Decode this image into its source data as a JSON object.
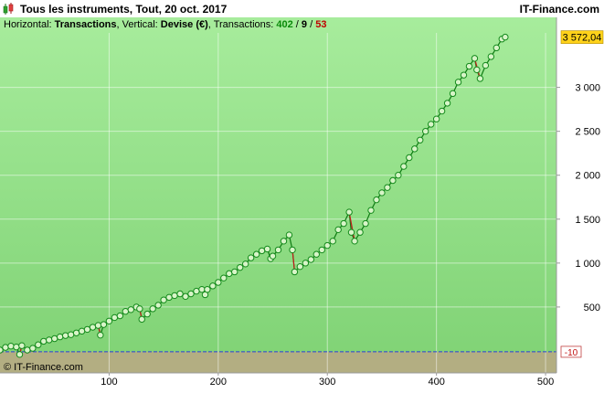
{
  "header": {
    "title": "Tous les instruments, Tout, 20 oct. 2017",
    "brand": "IT-Finance.com"
  },
  "subtitle": {
    "horizontal_label": "Horizontal: ",
    "horizontal_value": "Transactions",
    "vertical_label": ", Vertical: ",
    "vertical_value": "Devise (€)",
    "transactions_label": ", Transactions: ",
    "count_total": "402",
    "sep1": " / ",
    "count_neutral": "9",
    "sep2": " / ",
    "count_losing": "53"
  },
  "watermark": "© IT-Finance.com",
  "colors": {
    "bg_top": "#a7ec9c",
    "bg_bottom": "#7fd274",
    "line": "#0e7a12",
    "loss_line": "#c41a1a",
    "marker_fill": "#d8f5c8",
    "marker_stroke": "#148a1c",
    "zero_zone": "#b3ae82",
    "baseline": "#2b3fd8",
    "last_value_bg": "#ffd21a"
  },
  "chart_data": {
    "type": "line",
    "title": "",
    "xlabel": "",
    "ylabel": "",
    "xlim": [
      0,
      510
    ],
    "ylim": [
      -250,
      3620
    ],
    "x_ticks": [
      100,
      200,
      300,
      400,
      500
    ],
    "y_ticks": [
      500,
      1000,
      1500,
      2000,
      2500,
      3000
    ],
    "y_tick_labels": [
      "500",
      "1 000",
      "1 500",
      "2 000",
      "2 500",
      "3 000"
    ],
    "baseline_value": -10,
    "baseline_label": "-10",
    "last_value": 3572.04,
    "last_value_label": "3 572,04",
    "grid": true,
    "series": [
      {
        "points": [
          [
            0,
            10
          ],
          [
            5,
            40
          ],
          [
            10,
            55
          ],
          [
            15,
            45
          ],
          [
            18,
            -40
          ],
          [
            20,
            60
          ],
          [
            25,
            10
          ],
          [
            30,
            30
          ],
          [
            35,
            70
          ],
          [
            40,
            110
          ],
          [
            45,
            125
          ],
          [
            50,
            140
          ],
          [
            55,
            160
          ],
          [
            60,
            175
          ],
          [
            65,
            185
          ],
          [
            70,
            205
          ],
          [
            75,
            225
          ],
          [
            80,
            245
          ],
          [
            85,
            270
          ],
          [
            90,
            290
          ],
          [
            92,
            180
          ],
          [
            95,
            300
          ],
          [
            100,
            340
          ],
          [
            105,
            380
          ],
          [
            110,
            400
          ],
          [
            115,
            450
          ],
          [
            120,
            470
          ],
          [
            125,
            500
          ],
          [
            128,
            480
          ],
          [
            130,
            360
          ],
          [
            135,
            420
          ],
          [
            140,
            480
          ],
          [
            145,
            520
          ],
          [
            150,
            580
          ],
          [
            155,
            610
          ],
          [
            160,
            630
          ],
          [
            165,
            650
          ],
          [
            170,
            620
          ],
          [
            175,
            650
          ],
          [
            180,
            680
          ],
          [
            185,
            700
          ],
          [
            188,
            640
          ],
          [
            190,
            700
          ],
          [
            195,
            740
          ],
          [
            200,
            780
          ],
          [
            205,
            830
          ],
          [
            210,
            880
          ],
          [
            215,
            900
          ],
          [
            220,
            950
          ],
          [
            225,
            990
          ],
          [
            230,
            1060
          ],
          [
            235,
            1100
          ],
          [
            240,
            1140
          ],
          [
            245,
            1160
          ],
          [
            248,
            1050
          ],
          [
            250,
            1080
          ],
          [
            255,
            1150
          ],
          [
            260,
            1250
          ],
          [
            265,
            1320
          ],
          [
            268,
            1150
          ],
          [
            270,
            900
          ],
          [
            275,
            960
          ],
          [
            280,
            1000
          ],
          [
            285,
            1040
          ],
          [
            290,
            1100
          ],
          [
            295,
            1150
          ],
          [
            300,
            1200
          ],
          [
            305,
            1250
          ],
          [
            310,
            1380
          ],
          [
            315,
            1450
          ],
          [
            320,
            1580
          ],
          [
            322,
            1350
          ],
          [
            325,
            1250
          ],
          [
            330,
            1350
          ],
          [
            335,
            1450
          ],
          [
            340,
            1600
          ],
          [
            345,
            1720
          ],
          [
            350,
            1800
          ],
          [
            355,
            1860
          ],
          [
            360,
            1940
          ],
          [
            365,
            2000
          ],
          [
            370,
            2100
          ],
          [
            375,
            2200
          ],
          [
            380,
            2300
          ],
          [
            385,
            2400
          ],
          [
            390,
            2500
          ],
          [
            395,
            2580
          ],
          [
            400,
            2640
          ],
          [
            405,
            2730
          ],
          [
            410,
            2820
          ],
          [
            415,
            2930
          ],
          [
            420,
            3060
          ],
          [
            425,
            3140
          ],
          [
            430,
            3240
          ],
          [
            435,
            3330
          ],
          [
            437,
            3200
          ],
          [
            440,
            3100
          ],
          [
            445,
            3250
          ],
          [
            450,
            3350
          ],
          [
            455,
            3450
          ],
          [
            460,
            3550
          ],
          [
            463,
            3572.04
          ]
        ],
        "drops": [
          [
            17,
            20
          ],
          [
            91,
            92
          ],
          [
            127,
            128
          ],
          [
            129,
            131
          ],
          [
            187,
            189
          ],
          [
            247,
            249
          ],
          [
            267,
            270
          ],
          [
            321,
            325
          ],
          [
            436,
            440
          ]
        ]
      }
    ]
  }
}
